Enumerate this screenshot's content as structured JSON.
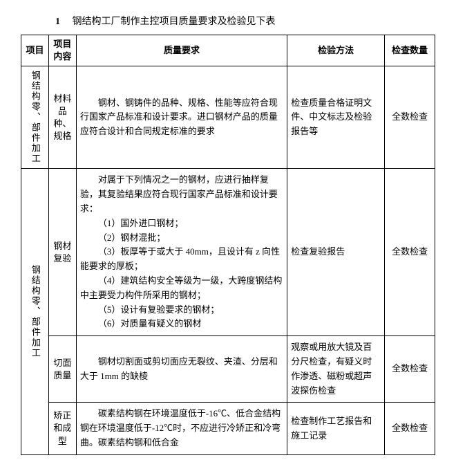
{
  "title_number": "1",
  "title_text": "钢结构工厂制作主控项目质量要求及检验见下表",
  "headers": {
    "project": "项目",
    "item": "项目内容",
    "requirement": "质量要求",
    "method": "检验方法",
    "qty": "检查数量"
  },
  "group1": {
    "project": "钢结构零、部件加工",
    "item": "材料品种、规格",
    "requirement": "钢材、钢铸件的品种、规格、性能等应符合现行国家产品标准和设计要求。进口钢材产品的质量应符合设计和合同规定标准的要求",
    "method": "检查质量合格证明文件、中文标志及检验报告等",
    "qty": "全数检查"
  },
  "group2": {
    "project": "钢结构零、部件加工",
    "rows": {
      "r1": {
        "item": "钢材复验",
        "req_intro": "对属于下列情况之一的钢材，应进行抽样复验，其复验结果应符合现行国家产品标准和设计要求：",
        "req_1": "（1）国外进口钢材；",
        "req_2": "（2）钢材混批；",
        "req_3": "（3）板厚等于或大于 40mm，且设计有 z 向性能要求的厚板；",
        "req_4": "（4）建筑结构安全等级为一级，大跨度钢结构中主要受力构件所采用的钢材；",
        "req_5": "（5）设计有复验要求的钢材；",
        "req_6": "（6）对质量有疑义的钢材",
        "method": "检查复验报告",
        "qty": "全数检查"
      },
      "r2": {
        "item": "切面质量",
        "requirement": "钢材切割面或剪切面应无裂纹、夹渣、分层和大于 1mm 的缺棱",
        "method": "观察或用放大镜及百分尺检查，有疑义时作渗透、磁粉或超声波探伤检查",
        "qty": "全数检查"
      },
      "r3": {
        "item": "矫正和成型",
        "requirement": "碳素结构钢在环境温度低于-16℃、低合金结构钢在环境温度低于-12℃时，不应进行冷矫正和冷弯曲。碳素结构钢和低合金",
        "method": "检查制作工艺报告和施工记录",
        "qty": "全数检查"
      }
    }
  }
}
